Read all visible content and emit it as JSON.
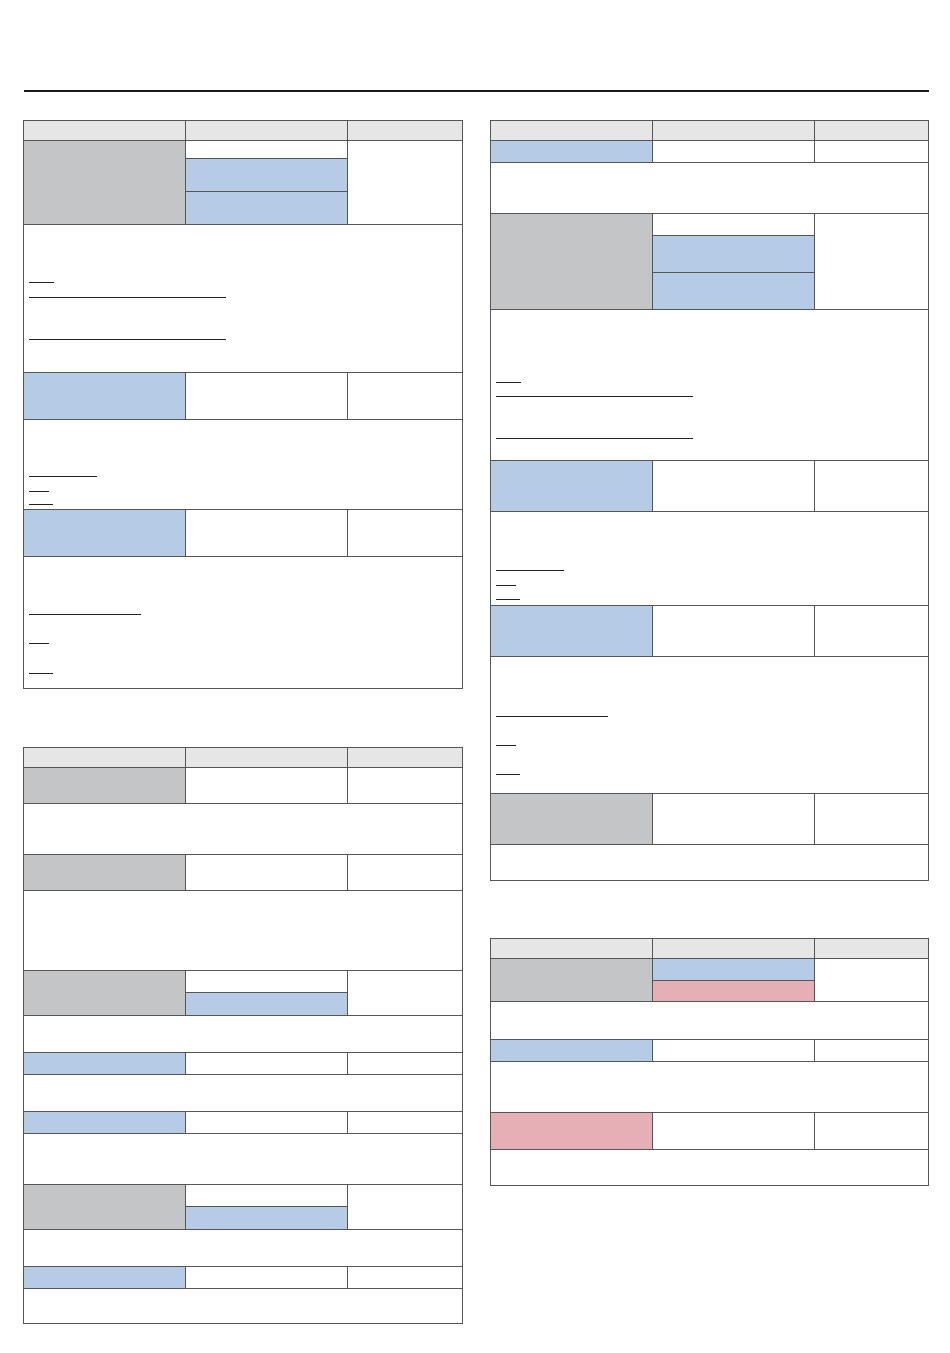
{
  "page": {
    "colors": {
      "header_fill": "#e6e6e6",
      "gray_fill": "#c4c5c7",
      "blue_fill": "#b6cce6",
      "pink_fill": "#e6aeb5",
      "border": "#555555",
      "rule": "#1a1a1a"
    },
    "tables": [
      {
        "id": "table-1",
        "rows": [
          "header",
          "merged-gray-with-three-stacked-cells",
          "note-with-two-links",
          "blue-row",
          "note-with-three-links",
          "blue-row",
          "note-with-three-links"
        ]
      },
      {
        "id": "table-2",
        "rows": [
          "header",
          "gray-row",
          "note",
          "gray-row",
          "note",
          "merged-gray-with-two-stacked-cells",
          "note",
          "blue-row",
          "note",
          "blue-row",
          "note",
          "merged-gray-with-two-stacked-cells",
          "note",
          "blue-row",
          "note"
        ]
      },
      {
        "id": "table-3",
        "rows": [
          "header",
          "blue-row",
          "note",
          "merged-gray-with-three-stacked-cells",
          "note-with-two-links",
          "blue-row",
          "note-with-three-links",
          "blue-row",
          "note-with-three-links",
          "gray-row",
          "note"
        ]
      },
      {
        "id": "table-4",
        "rows": [
          "header",
          "merged-gray-with-blue-and-pink-cells",
          "note",
          "blue-row",
          "note",
          "pink-row",
          "note"
        ]
      }
    ]
  }
}
